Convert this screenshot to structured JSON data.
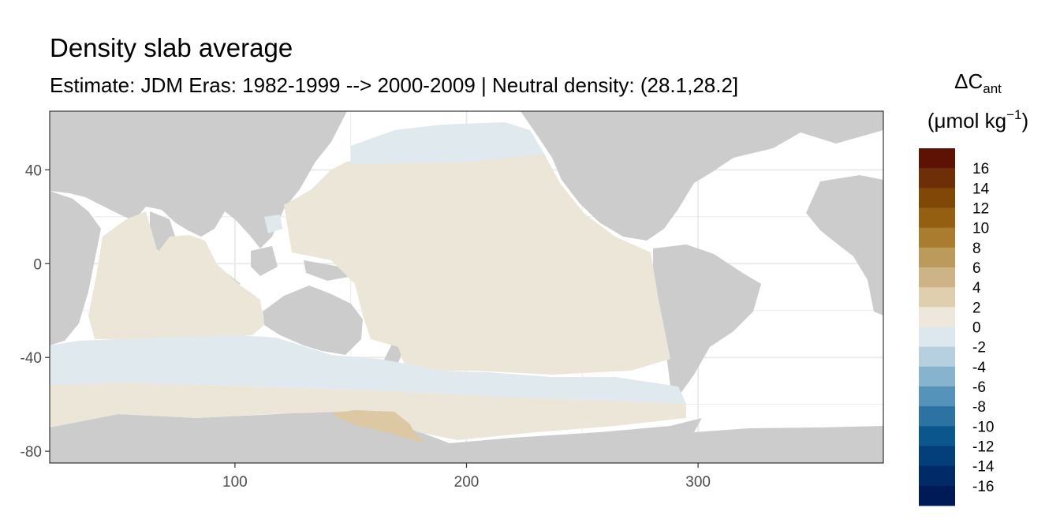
{
  "chart_data": {
    "type": "heatmap",
    "title": "Density slab average",
    "subtitle": "Estimate: JDM Eras: 1982-1999 --> 2000-2009 | Neutral density: (28.1,28.2]",
    "x_ticks": [
      100,
      200,
      300
    ],
    "y_ticks": [
      40,
      0,
      -40,
      -80
    ],
    "xlim": [
      20,
      380
    ],
    "ylim": [
      -85,
      65
    ],
    "legend": {
      "title_main": "ΔC",
      "title_sub": "ant",
      "units_prefix": "(μmol kg",
      "units_sup": "−1",
      "units_suffix": ")",
      "placement": "right",
      "labels": [
        "16",
        "14",
        "12",
        "10",
        "8",
        "6",
        "4",
        "2",
        "0",
        "-2",
        "-4",
        "-6",
        "-8",
        "-10",
        "-12",
        "-14",
        "-16"
      ],
      "colors": [
        "#5e1204",
        "#6e2f06",
        "#804707",
        "#945f10",
        "#a97c30",
        "#bb9a5b",
        "#cdb486",
        "#dfcfae",
        "#ede7dc",
        "#dde8ee",
        "#b6d0e0",
        "#86b4cf",
        "#5593ba",
        "#2c73a3",
        "#0b578d",
        "#033f7a",
        "#002b68",
        "#001a58"
      ]
    },
    "colors": {
      "land": "#cccccc",
      "no_data": "#ffffff",
      "grid": "#ebebeb",
      "positive_small": "#ece6d9",
      "negative_small": "#dfe9ee",
      "positive_mid": "#dcc8a2"
    }
  }
}
